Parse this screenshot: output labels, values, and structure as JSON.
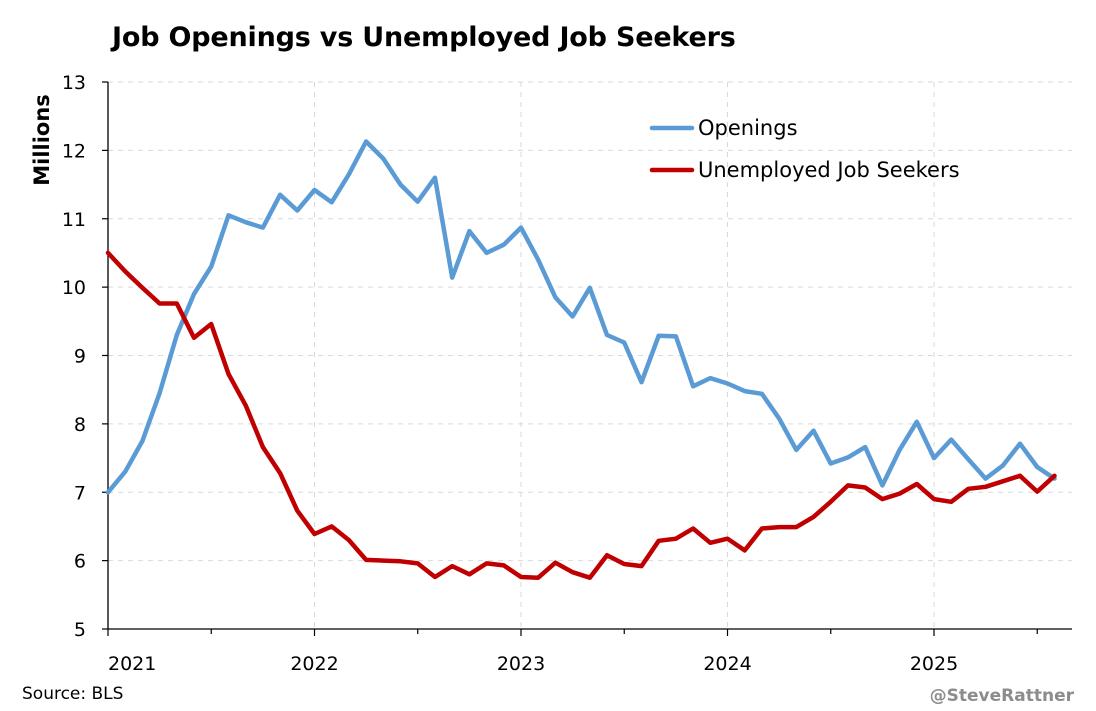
{
  "chart_data": {
    "type": "line",
    "title": "Job Openings vs Unemployed Job Seekers",
    "ylabel": "Millions",
    "xlabel": "",
    "ylim": [
      5,
      13
    ],
    "yticks": [
      "5",
      "6",
      "7",
      "8",
      "9",
      "10",
      "11",
      "12",
      "13"
    ],
    "xlim": [
      2021,
      2025.67
    ],
    "xticks": [
      "2021",
      "2022",
      "2023",
      "2024",
      "2025"
    ],
    "grid": true,
    "legend_position": "top-right",
    "series": [
      {
        "name": "Openings",
        "color": "#5b9bd5",
        "x_start": 2021,
        "x_step": 0.0833333,
        "values": [
          7.0,
          7.3,
          7.75,
          8.45,
          9.3,
          9.9,
          10.3,
          11.05,
          10.95,
          10.87,
          11.35,
          11.12,
          11.42,
          11.24,
          11.65,
          12.13,
          11.88,
          11.5,
          11.25,
          11.6,
          10.14,
          10.82,
          10.5,
          10.62,
          10.87,
          10.4,
          9.85,
          9.57,
          9.99,
          9.3,
          9.19,
          8.61,
          9.29,
          9.28,
          8.55,
          8.67,
          8.59,
          8.48,
          8.44,
          8.08,
          7.62,
          7.9,
          7.42,
          7.51,
          7.66,
          7.1,
          7.62,
          8.03,
          7.5,
          7.77,
          7.48,
          7.2,
          7.39,
          7.71,
          7.37,
          7.2
        ]
      },
      {
        "name": "Unemployed Job Seekers",
        "color": "#c00000",
        "x_start": 2021,
        "x_step": 0.0833333,
        "values": [
          10.5,
          10.23,
          9.99,
          9.76,
          9.76,
          9.26,
          9.46,
          8.73,
          8.27,
          7.66,
          7.28,
          6.73,
          6.39,
          6.5,
          6.3,
          6.01,
          6.0,
          5.99,
          5.96,
          5.76,
          5.92,
          5.8,
          5.96,
          5.93,
          5.76,
          5.75,
          5.97,
          5.83,
          5.75,
          6.08,
          5.95,
          5.92,
          6.29,
          6.32,
          6.47,
          6.26,
          6.32,
          6.15,
          6.47,
          6.49,
          6.49,
          6.64,
          6.86,
          7.1,
          7.07,
          6.9,
          6.98,
          7.12,
          6.9,
          6.86,
          7.05,
          7.08,
          7.16,
          7.24,
          7.01,
          7.24
        ]
      }
    ],
    "source": "Source: BLS",
    "credit": "@SteveRattner"
  }
}
